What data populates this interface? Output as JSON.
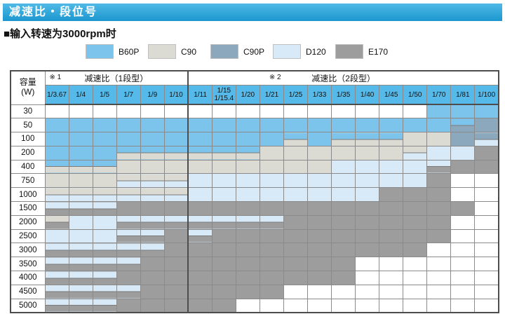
{
  "page_title": "减速比・段位号",
  "subtitle": "■输入转速为3000rpm时",
  "legend": [
    {
      "name": "B60P",
      "code": "B"
    },
    {
      "name": "C90",
      "code": "C"
    },
    {
      "name": "C90P",
      "code": "P"
    },
    {
      "name": "D120",
      "code": "D"
    },
    {
      "name": "E170",
      "code": "E"
    }
  ],
  "colors": {
    "B": "#7CC4EC",
    "C": "#DBDBD4",
    "P": "#8CA8BC",
    "D": "#D8E9F8",
    "E": "#9D9D9D",
    "ratio_header_bg": "#55BAE9",
    "title_bar_top": "#4FB9E6",
    "title_bar_bottom": "#1B97CE",
    "band_divider": "#7a7a7a"
  },
  "table": {
    "capacity_header": "容量\n(W)",
    "sections": [
      {
        "mark": "※ 1",
        "label": "减速比（1段型）",
        "span": 6
      },
      {
        "mark": "※ 2",
        "label": "减速比（2段型）",
        "span": 13
      }
    ],
    "ratio_columns": [
      "1/3.67",
      "1/4",
      "1/5",
      "1/7",
      "1/9",
      "1/10",
      "1/11",
      "1/15\n1/15.4",
      "1/20",
      "1/21",
      "1/25",
      "1/33",
      "1/35",
      "1/40",
      "1/45",
      "1/50",
      "1/70",
      "1/81",
      "1/100"
    ],
    "rows": [
      {
        "capacity": "30",
        "cells": [
          "",
          "",
          "",
          "",
          "",
          "",
          "",
          "",
          "",
          "",
          "",
          "",
          "",
          "",
          "",
          "",
          "B",
          "B",
          "B"
        ]
      },
      {
        "capacity": "50",
        "cells": [
          "B",
          "B",
          "B",
          "B",
          "B",
          "B",
          "B",
          "B",
          "B",
          "B",
          "B",
          "B",
          "B",
          "B",
          "B",
          "B",
          "B",
          "B/P",
          "P"
        ]
      },
      {
        "capacity": "100",
        "cells": [
          "B",
          "B",
          "B",
          "B",
          "B",
          "B",
          "B",
          "B",
          "B",
          "B",
          "B/C",
          "B",
          "B/C",
          "B/C",
          "B/C",
          "C",
          "C",
          "P",
          "P/D"
        ]
      },
      {
        "capacity": "200",
        "cells": [
          "B",
          "B",
          "B",
          "B/C",
          "B/C",
          "B/C",
          "B/C",
          "B/C",
          "B/C",
          "C",
          "C",
          "C",
          "C",
          "C",
          "C",
          "C/D",
          "D",
          "D",
          "E"
        ]
      },
      {
        "capacity": "400",
        "cells": [
          "B/C",
          "B/C",
          "B/C",
          "C",
          "C",
          "C",
          "C",
          "C",
          "C",
          "C",
          "C",
          "C",
          "D",
          "D",
          "D",
          "D",
          "D/E",
          "E",
          "E"
        ]
      },
      {
        "capacity": "750",
        "cells": [
          "C",
          "C",
          "C",
          "C/D",
          "C/D",
          "C/D",
          "D",
          "D",
          "D",
          "D",
          "D",
          "D",
          "D",
          "D",
          "D",
          "D",
          "E",
          "",
          ""
        ]
      },
      {
        "capacity": "1000",
        "cells": [
          "C/D",
          "C/D",
          "C/D",
          "C/D",
          "C/D",
          "C/D",
          "D",
          "D",
          "D",
          "D",
          "D",
          "D",
          "D",
          "D",
          "E",
          "E",
          "E",
          "",
          ""
        ]
      },
      {
        "capacity": "1500",
        "cells": [
          "D/E",
          "D/E",
          "D/E",
          "E",
          "E",
          "E",
          "E",
          "E",
          "E",
          "E",
          "E",
          "E",
          "E",
          "E",
          "E",
          "E",
          "E",
          "E",
          ""
        ]
      },
      {
        "capacity": "2000",
        "cells": [
          "C/E",
          "D",
          "D",
          "D/E",
          "D/E",
          "D/E",
          "D/E",
          "D/E",
          "D/E",
          "D/E",
          "E",
          "E",
          "E",
          "E",
          "E",
          "E",
          "E",
          "",
          ""
        ]
      },
      {
        "capacity": "2500",
        "cells": [
          "D",
          "D",
          "D",
          "D/E",
          "D/E",
          "E",
          "D/E",
          "E",
          "E",
          "E",
          "E",
          "E",
          "E",
          "E",
          "E",
          "E",
          "E",
          "",
          ""
        ]
      },
      {
        "capacity": "3000",
        "cells": [
          "D/E",
          "D/E",
          "D/E",
          "D/E",
          "D/E",
          "E",
          "E",
          "E",
          "E",
          "E",
          "E",
          "E",
          "E",
          "E",
          "E",
          "E",
          "",
          "",
          ""
        ]
      },
      {
        "capacity": "3500",
        "cells": [
          "D/E",
          "D/E",
          "D/E",
          "D/E",
          "E",
          "E",
          "E",
          "E",
          "E",
          "E",
          "E",
          "E",
          "E",
          "",
          "",
          "",
          "",
          "",
          ""
        ]
      },
      {
        "capacity": "4000",
        "cells": [
          "D/E",
          "D/E",
          "D/E",
          "E",
          "E",
          "E",
          "E",
          "E",
          "E",
          "E",
          "E",
          "E",
          "E",
          "",
          "",
          "",
          "",
          "",
          ""
        ]
      },
      {
        "capacity": "4500",
        "cells": [
          "D/E",
          "D/E",
          "D/E",
          "D/E",
          "E",
          "E",
          "E",
          "E",
          "E",
          "E",
          "",
          "",
          "",
          "",
          "",
          "",
          "",
          "",
          ""
        ]
      },
      {
        "capacity": "5000",
        "cells": [
          "D/E",
          "D/E",
          "D/E",
          "E",
          "E",
          "E",
          "E",
          "E",
          "",
          "",
          "",
          "",
          "",
          "",
          "",
          "",
          "",
          "",
          ""
        ]
      }
    ]
  }
}
